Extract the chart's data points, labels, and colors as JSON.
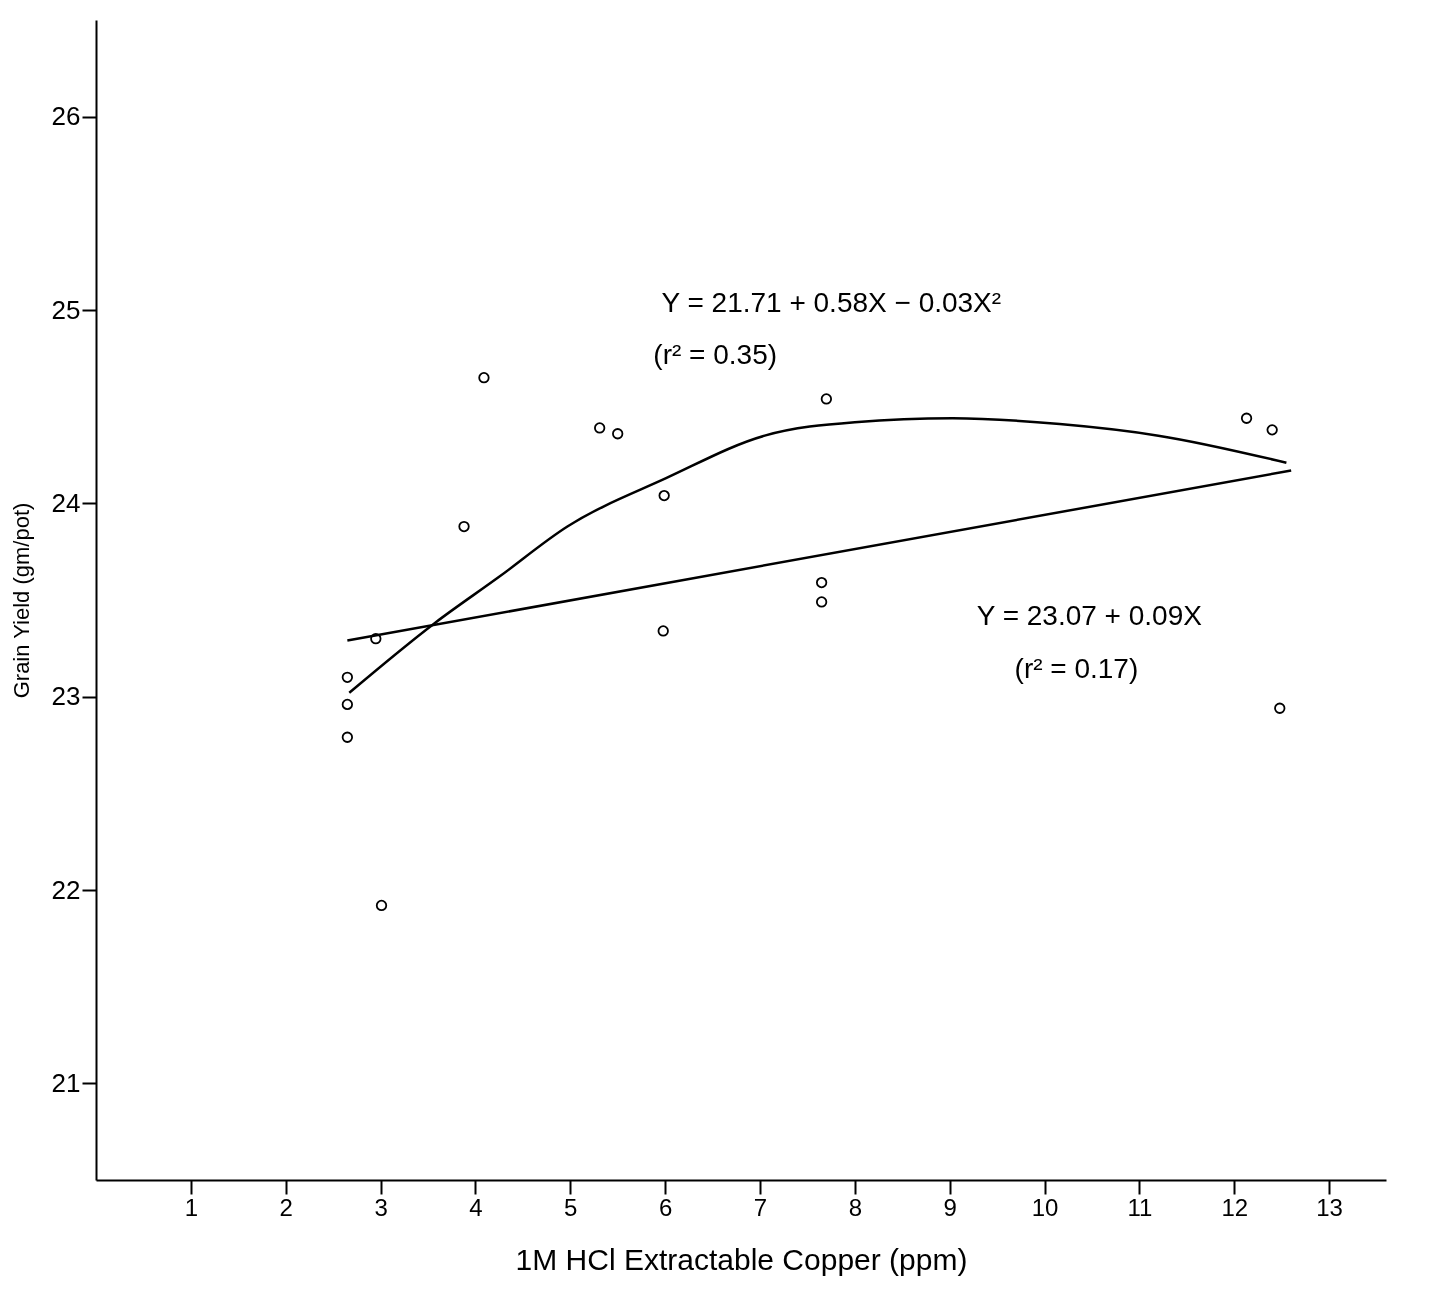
{
  "chart_data": {
    "type": "scatter",
    "xlabel": "1M HCl Extractable Copper (ppm)",
    "ylabel": "Grain Yield (gm/pot)",
    "xlim": [
      0,
      13.6
    ],
    "ylim": [
      20.5,
      26.5
    ],
    "xticks": [
      1,
      2,
      3,
      4,
      5,
      6,
      7,
      8,
      9,
      10,
      11,
      12,
      13
    ],
    "yticks": [
      21,
      22,
      23,
      24,
      25,
      26
    ],
    "grid": false,
    "series": [
      {
        "marker": "circle",
        "color": "#000000",
        "x": [
          2.65,
          2.65,
          2.65,
          2.95,
          3.01,
          3.88,
          4.09,
          5.31,
          5.5,
          5.99,
          5.98,
          7.7,
          7.65,
          7.65,
          12.13,
          12.4,
          12.48
        ],
        "values": [
          23.1,
          22.96,
          22.79,
          23.3,
          21.92,
          23.88,
          24.65,
          24.39,
          24.36,
          24.04,
          23.34,
          24.54,
          23.59,
          23.49,
          24.44,
          24.38,
          22.94
        ]
      },
      {
        "type": "line",
        "marker": "none",
        "color": "#000000",
        "x": [
          2.65,
          12.6
        ],
        "values": [
          23.29,
          24.17
        ]
      },
      {
        "type": "line",
        "marker": "none",
        "color": "#000000",
        "x": [
          2.67,
          3.57,
          4.25,
          4.97,
          6.01,
          7.05,
          8.0,
          9.03,
          10.16,
          11.2,
          12.55
        ],
        "values": [
          23.02,
          23.38,
          23.62,
          23.88,
          24.13,
          24.35,
          24.42,
          24.44,
          24.41,
          24.35,
          24.21
        ]
      }
    ],
    "annotations": [
      "Y = 21.71 + 0.58X − 0.03X²",
      "(r² = 0.35)",
      "Y = 23.07 + 0.09X",
      "(r² = 0.17)"
    ]
  }
}
